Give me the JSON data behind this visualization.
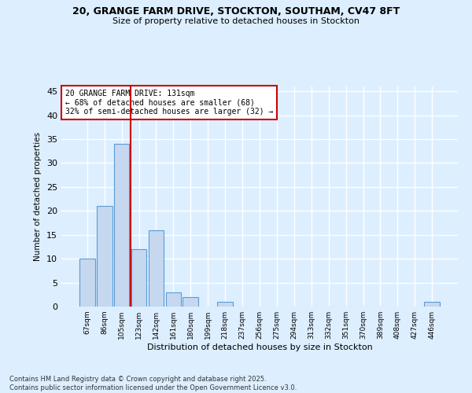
{
  "title1": "20, GRANGE FARM DRIVE, STOCKTON, SOUTHAM, CV47 8FT",
  "title2": "Size of property relative to detached houses in Stockton",
  "xlabel": "Distribution of detached houses by size in Stockton",
  "ylabel": "Number of detached properties",
  "categories": [
    "67sqm",
    "86sqm",
    "105sqm",
    "123sqm",
    "142sqm",
    "161sqm",
    "180sqm",
    "199sqm",
    "218sqm",
    "237sqm",
    "256sqm",
    "275sqm",
    "294sqm",
    "313sqm",
    "332sqm",
    "351sqm",
    "370sqm",
    "389sqm",
    "408sqm",
    "427sqm",
    "446sqm"
  ],
  "values": [
    10,
    21,
    34,
    12,
    16,
    3,
    2,
    0,
    1,
    0,
    0,
    0,
    0,
    0,
    0,
    0,
    0,
    0,
    0,
    0,
    1
  ],
  "bar_color": "#c5d8f0",
  "bar_edge_color": "#5b9bd5",
  "vline_color": "#cc0000",
  "annotation_text": "20 GRANGE FARM DRIVE: 131sqm\n← 68% of detached houses are smaller (68)\n32% of semi-detached houses are larger (32) →",
  "annotation_box_color": "#ffffff",
  "annotation_box_edge": "#cc0000",
  "ylim": [
    0,
    46
  ],
  "yticks": [
    0,
    5,
    10,
    15,
    20,
    25,
    30,
    35,
    40,
    45
  ],
  "background_color": "#ddeeff",
  "grid_color": "#ffffff",
  "footer": "Contains HM Land Registry data © Crown copyright and database right 2025.\nContains public sector information licensed under the Open Government Licence v3.0."
}
